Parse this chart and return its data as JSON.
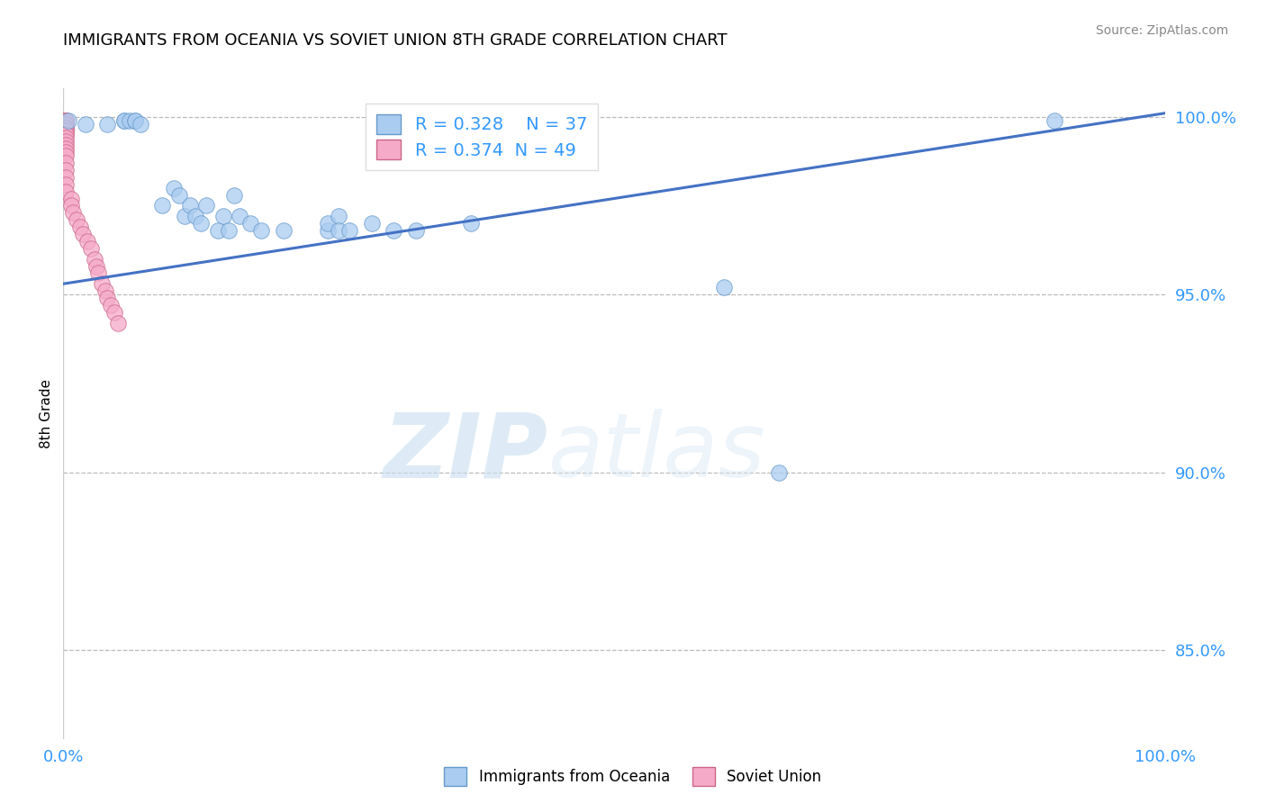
{
  "title": "IMMIGRANTS FROM OCEANIA VS SOVIET UNION 8TH GRADE CORRELATION CHART",
  "source": "Source: ZipAtlas.com",
  "ylabel": "8th Grade",
  "xlim": [
    0.0,
    1.0
  ],
  "ylim": [
    0.825,
    1.008
  ],
  "blue_R": 0.328,
  "blue_N": 37,
  "pink_R": 0.374,
  "pink_N": 49,
  "blue_color": "#aaccf0",
  "pink_color": "#f5aac8",
  "blue_edge": "#6699cc",
  "pink_edge": "#cc6688",
  "line_color": "#4472c4",
  "blue_scatter_x": [
    0.005,
    0.02,
    0.04,
    0.055,
    0.055,
    0.06,
    0.065,
    0.065,
    0.07,
    0.09,
    0.1,
    0.105,
    0.11,
    0.115,
    0.12,
    0.125,
    0.13,
    0.14,
    0.145,
    0.15,
    0.155,
    0.16,
    0.17,
    0.18,
    0.2,
    0.24,
    0.24,
    0.25,
    0.25,
    0.26,
    0.28,
    0.3,
    0.32,
    0.37,
    0.6,
    0.65,
    0.9
  ],
  "blue_scatter_y": [
    0.999,
    0.998,
    0.998,
    0.999,
    0.999,
    0.999,
    0.999,
    0.999,
    0.998,
    0.975,
    0.98,
    0.978,
    0.972,
    0.975,
    0.972,
    0.97,
    0.975,
    0.968,
    0.972,
    0.968,
    0.978,
    0.972,
    0.97,
    0.968,
    0.968,
    0.968,
    0.97,
    0.972,
    0.968,
    0.968,
    0.97,
    0.968,
    0.968,
    0.97,
    0.952,
    0.9,
    0.999
  ],
  "pink_scatter_x": [
    0.002,
    0.002,
    0.002,
    0.002,
    0.002,
    0.002,
    0.002,
    0.002,
    0.002,
    0.002,
    0.002,
    0.002,
    0.002,
    0.002,
    0.002,
    0.002,
    0.002,
    0.002,
    0.002,
    0.002,
    0.002,
    0.002,
    0.002,
    0.002,
    0.002,
    0.002,
    0.002,
    0.002,
    0.002,
    0.002,
    0.002,
    0.002,
    0.007,
    0.007,
    0.009,
    0.012,
    0.015,
    0.018,
    0.022,
    0.025,
    0.028,
    0.03,
    0.032,
    0.035,
    0.038,
    0.04,
    0.043,
    0.046,
    0.05
  ],
  "pink_scatter_y": [
    0.999,
    0.999,
    0.999,
    0.999,
    0.999,
    0.999,
    0.999,
    0.999,
    0.999,
    0.999,
    0.999,
    0.999,
    0.998,
    0.998,
    0.997,
    0.997,
    0.997,
    0.996,
    0.996,
    0.995,
    0.995,
    0.994,
    0.993,
    0.992,
    0.991,
    0.99,
    0.989,
    0.987,
    0.985,
    0.983,
    0.981,
    0.979,
    0.977,
    0.975,
    0.973,
    0.971,
    0.969,
    0.967,
    0.965,
    0.963,
    0.96,
    0.958,
    0.956,
    0.953,
    0.951,
    0.949,
    0.947,
    0.945,
    0.942
  ],
  "trend_x_start": 0.0,
  "trend_x_end": 1.0,
  "trend_y_start": 0.953,
  "trend_y_end": 1.001,
  "ytick_vals": [
    0.85,
    0.9,
    0.95,
    1.0
  ],
  "ytick_labels": [
    "85.0%",
    "90.0%",
    "95.0%",
    "100.0%"
  ],
  "legend_label_blue": "Immigrants from Oceania",
  "legend_label_pink": "Soviet Union",
  "watermark_zip": "ZIP",
  "watermark_atlas": "atlas"
}
